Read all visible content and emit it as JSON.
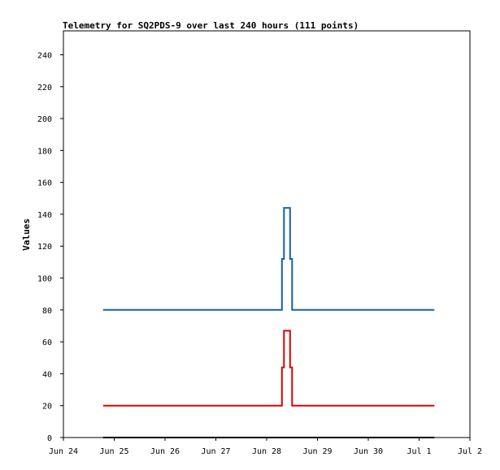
{
  "chart_data": {
    "type": "line",
    "title": "Telemetry for SQ2PDS-9 over last 240 hours (111 points)",
    "xlabel": "",
    "ylabel": "Values",
    "x_tick_labels": [
      "Jun 24",
      "Jun 25",
      "Jun 26",
      "Jun 27",
      "Jun 28",
      "Jun 29",
      "Jun 30",
      "Jul 1",
      "Jul 2"
    ],
    "y_ticks": [
      0,
      20,
      40,
      60,
      80,
      100,
      120,
      140,
      160,
      180,
      200,
      220,
      240
    ],
    "xlim": [
      0,
      8
    ],
    "ylim": [
      0,
      255
    ],
    "grid": false,
    "legend": "none",
    "series": [
      {
        "color": "#1560a8",
        "step": true,
        "x": [
          0.78,
          4.3,
          4.3,
          4.34,
          4.34,
          4.46,
          4.46,
          4.5,
          4.5,
          7.3
        ],
        "y": [
          80,
          80,
          112,
          112,
          144,
          144,
          112,
          112,
          80,
          80
        ]
      },
      {
        "color": "#e00000",
        "step": true,
        "x": [
          0.78,
          4.3,
          4.3,
          4.34,
          4.34,
          4.46,
          4.46,
          4.5,
          4.5,
          7.3
        ],
        "y": [
          20,
          20,
          44,
          44,
          67,
          67,
          44,
          44,
          20,
          20
        ]
      },
      {
        "color": "#000000",
        "step": true,
        "x": [
          0.78,
          7.3
        ],
        "y": [
          0,
          0
        ]
      }
    ]
  }
}
